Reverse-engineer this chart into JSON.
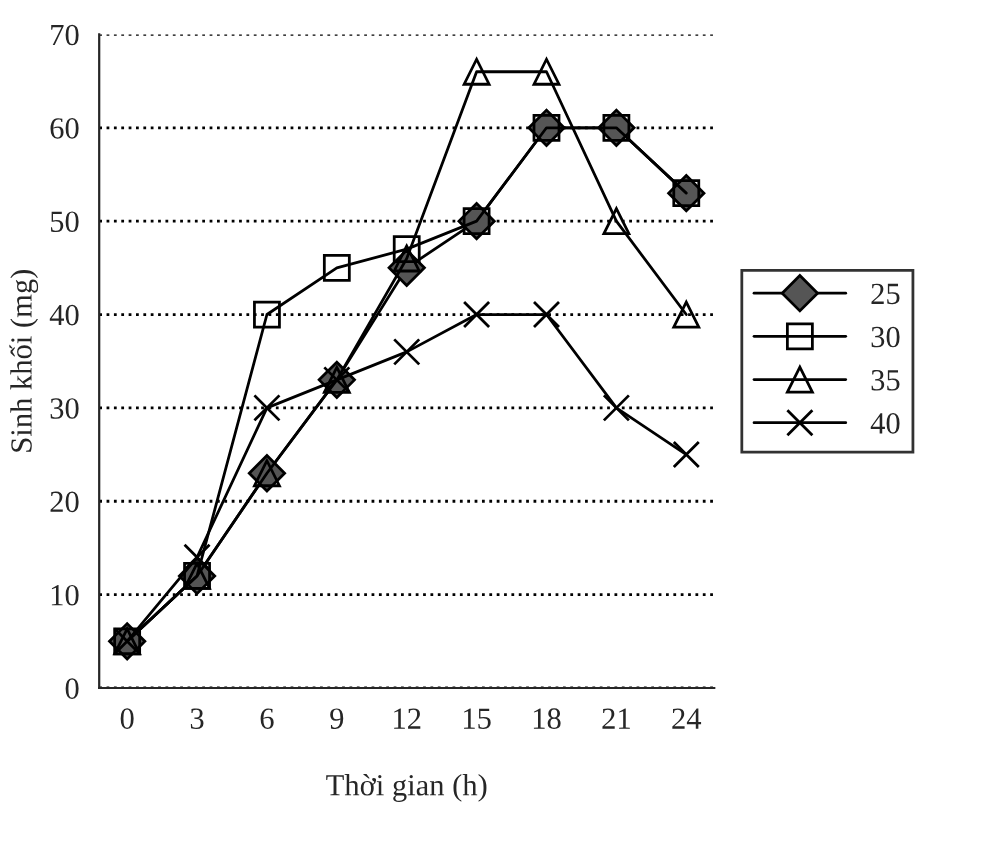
{
  "chart_data": {
    "type": "line",
    "xlabel": "Thời gian (h)",
    "ylabel": "Sinh khối (mg)",
    "categories": [
      "0",
      "3",
      "6",
      "9",
      "12",
      "15",
      "18",
      "21",
      "24"
    ],
    "series": [
      {
        "name": "25",
        "color": "#000000",
        "marker": "diamond",
        "values": [
          5,
          12,
          23,
          33,
          45,
          50,
          60,
          60,
          53
        ]
      },
      {
        "name": "30",
        "color": "#000000",
        "marker": "square",
        "values": [
          5,
          12,
          40,
          45,
          47,
          50,
          60,
          60,
          53
        ]
      },
      {
        "name": "35",
        "color": "#000000",
        "marker": "triangle",
        "values": [
          5,
          12,
          23,
          33,
          46,
          66,
          66,
          50,
          40
        ]
      },
      {
        "name": "40",
        "color": "#000000",
        "marker": "cross",
        "values": [
          5,
          14,
          30,
          33,
          36,
          40,
          40,
          30,
          25
        ]
      }
    ],
    "ylim": [
      0,
      70
    ],
    "yticks": [
      0,
      10,
      20,
      30,
      40,
      50,
      60,
      70
    ],
    "grid": "y",
    "legend": "right",
    "line_style": "solid"
  }
}
